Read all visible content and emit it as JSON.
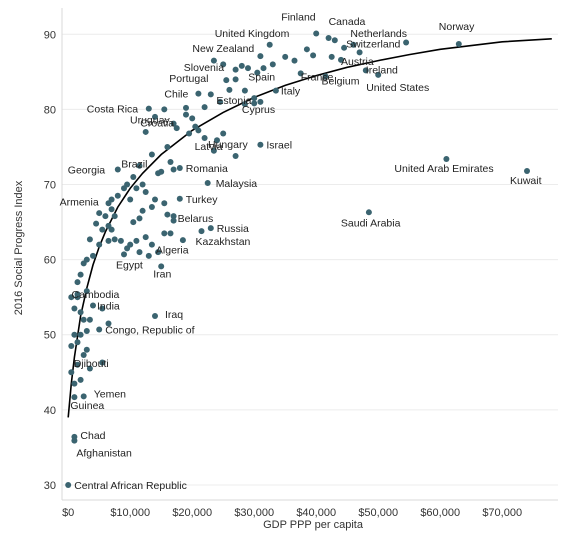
{
  "chart_data": {
    "type": "scatter",
    "xlabel": "GDP PPP per capita",
    "ylabel": "2016 Social Progress Index",
    "xlim": [
      -1000,
      79000
    ],
    "ylim": [
      28,
      93.5
    ],
    "x_ticks": [
      {
        "value": 0,
        "label": "$0"
      },
      {
        "value": 10000,
        "label": "$10,000"
      },
      {
        "value": 20000,
        "label": "$20,000"
      },
      {
        "value": 30000,
        "label": "$30,000"
      },
      {
        "value": 40000,
        "label": "$40,000"
      },
      {
        "value": 50000,
        "label": "$50,000"
      },
      {
        "value": 60000,
        "label": "$60,000"
      },
      {
        "value": 70000,
        "label": "$70,000"
      }
    ],
    "y_ticks": [
      {
        "value": 30,
        "label": "30"
      },
      {
        "value": 40,
        "label": "40"
      },
      {
        "value": 50,
        "label": "50"
      },
      {
        "value": 60,
        "label": "60"
      },
      {
        "value": 70,
        "label": "70"
      },
      {
        "value": 80,
        "label": "80"
      },
      {
        "value": 90,
        "label": "90"
      }
    ],
    "grid": "horizontal",
    "point_color": "#3b6470",
    "trend_color": "#000000",
    "trend_line": [
      [
        0,
        39
      ],
      [
        500,
        43.5
      ],
      [
        1000,
        47
      ],
      [
        2000,
        52.5
      ],
      [
        3000,
        56.2
      ],
      [
        4000,
        59.3
      ],
      [
        5000,
        61.7
      ],
      [
        6000,
        63.7
      ],
      [
        8000,
        67
      ],
      [
        10000,
        69.5
      ],
      [
        12000,
        71.5
      ],
      [
        15000,
        74
      ],
      [
        20000,
        77.2
      ],
      [
        25000,
        79.6
      ],
      [
        30000,
        81.6
      ],
      [
        35000,
        83.2
      ],
      [
        40000,
        84.5
      ],
      [
        45000,
        85.6
      ],
      [
        50000,
        86.5
      ],
      [
        55000,
        87.3
      ],
      [
        60000,
        88
      ],
      [
        65000,
        88.5
      ],
      [
        70000,
        89
      ],
      [
        78000,
        89.4
      ]
    ],
    "labeled_points": [
      {
        "name": "Finland",
        "x": 40000,
        "y": 90.1
      },
      {
        "name": "Canada",
        "x": 42000,
        "y": 89.5
      },
      {
        "name": "Netherlands",
        "x": 46000,
        "y": 88.6
      },
      {
        "name": "Norway",
        "x": 63000,
        "y": 88.7
      },
      {
        "name": "United Kingdom",
        "x": 32500,
        "y": 88.6
      },
      {
        "name": "New Zealand",
        "x": 31000,
        "y": 87.1
      },
      {
        "name": "Switzerland",
        "x": 54500,
        "y": 88.9
      },
      {
        "name": "Slovenia",
        "x": 28000,
        "y": 85.8
      },
      {
        "name": "Austria",
        "x": 44000,
        "y": 86.6
      },
      {
        "name": "Ireland",
        "x": 48000,
        "y": 85.2
      },
      {
        "name": "Spain",
        "x": 30500,
        "y": 84.9
      },
      {
        "name": "Portugal",
        "x": 25500,
        "y": 83.9
      },
      {
        "name": "Belgium",
        "x": 41500,
        "y": 84.4
      },
      {
        "name": "France",
        "x": 37500,
        "y": 84.8
      },
      {
        "name": "United States",
        "x": 50000,
        "y": 84.6
      },
      {
        "name": "Chile",
        "x": 21000,
        "y": 82.1
      },
      {
        "name": "Italy",
        "x": 33500,
        "y": 82.5
      },
      {
        "name": "Estonia",
        "x": 26000,
        "y": 82.6
      },
      {
        "name": "Costa Rica",
        "x": 13000,
        "y": 80.1
      },
      {
        "name": "Cyprus",
        "x": 28500,
        "y": 80.7
      },
      {
        "name": "Uruguay",
        "x": 19000,
        "y": 79.3
      },
      {
        "name": "Croatia",
        "x": 20500,
        "y": 77.7
      },
      {
        "name": "Hungary",
        "x": 24000,
        "y": 75.9
      },
      {
        "name": "Israel",
        "x": 31000,
        "y": 75.3
      },
      {
        "name": "Latvia",
        "x": 22000,
        "y": 76.2
      },
      {
        "name": "Brazil",
        "x": 15000,
        "y": 71.7
      },
      {
        "name": "Romania",
        "x": 18000,
        "y": 72.2
      },
      {
        "name": "United Arab Emirates",
        "x": 61000,
        "y": 73.4
      },
      {
        "name": "Kuwait",
        "x": 74000,
        "y": 71.8
      },
      {
        "name": "Georgia",
        "x": 8000,
        "y": 72.0
      },
      {
        "name": "Malaysia",
        "x": 22500,
        "y": 70.2
      },
      {
        "name": "Turkey",
        "x": 18000,
        "y": 68.1
      },
      {
        "name": "Armenia",
        "x": 7000,
        "y": 66.7
      },
      {
        "name": "Belarus",
        "x": 17000,
        "y": 65.8
      },
      {
        "name": "Saudi Arabia",
        "x": 48500,
        "y": 66.3
      },
      {
        "name": "Russia",
        "x": 23000,
        "y": 64.2
      },
      {
        "name": "Kazakhstan",
        "x": 21500,
        "y": 63.8
      },
      {
        "name": "Algeria",
        "x": 13500,
        "y": 62.0
      },
      {
        "name": "Egypt",
        "x": 9000,
        "y": 60.7
      },
      {
        "name": "Iran",
        "x": 15000,
        "y": 59.1
      },
      {
        "name": "Cambodia",
        "x": 1500,
        "y": 55.4
      },
      {
        "name": "India",
        "x": 4000,
        "y": 53.9
      },
      {
        "name": "Iraq",
        "x": 14000,
        "y": 52.5
      },
      {
        "name": "Congo, Republic of",
        "x": 5000,
        "y": 50.7
      },
      {
        "name": "Djibouti",
        "x": 2500,
        "y": 47.3
      },
      {
        "name": "Yemen",
        "x": 2500,
        "y": 41.8
      },
      {
        "name": "Guinea",
        "x": 1000,
        "y": 41.7
      },
      {
        "name": "Chad",
        "x": 1000,
        "y": 36.4
      },
      {
        "name": "Afghanistan",
        "x": 1000,
        "y": 35.9
      },
      {
        "name": "Central African Republic",
        "x": 0,
        "y": 30.0
      }
    ],
    "points": [
      [
        23500,
        86.5
      ],
      [
        25000,
        86
      ],
      [
        27000,
        85.3
      ],
      [
        29000,
        85.5
      ],
      [
        31500,
        85.5
      ],
      [
        33000,
        86
      ],
      [
        35000,
        87
      ],
      [
        36500,
        86.5
      ],
      [
        38500,
        88
      ],
      [
        39500,
        87.2
      ],
      [
        43000,
        89.2
      ],
      [
        44500,
        88.2
      ],
      [
        47000,
        87.6
      ],
      [
        42500,
        87
      ],
      [
        27000,
        84
      ],
      [
        28500,
        82.5
      ],
      [
        30000,
        81.5
      ],
      [
        23000,
        82
      ],
      [
        24500,
        81
      ],
      [
        22000,
        80.3
      ],
      [
        20000,
        78.8
      ],
      [
        19000,
        80.2
      ],
      [
        17000,
        78.1
      ],
      [
        17500,
        77.5
      ],
      [
        19500,
        76.8
      ],
      [
        21000,
        77.2
      ],
      [
        25000,
        76.8
      ],
      [
        23500,
        74.5
      ],
      [
        27000,
        73.8
      ],
      [
        30000,
        80.8
      ],
      [
        31000,
        81
      ],
      [
        15500,
        80
      ],
      [
        14000,
        79
      ],
      [
        12500,
        77
      ],
      [
        16000,
        75
      ],
      [
        13500,
        74
      ],
      [
        11500,
        72.5
      ],
      [
        10500,
        71
      ],
      [
        12000,
        70
      ],
      [
        16500,
        73
      ],
      [
        17000,
        72
      ],
      [
        14500,
        71.5
      ],
      [
        11000,
        69.5
      ],
      [
        10000,
        68
      ],
      [
        9500,
        70
      ],
      [
        9000,
        69.5
      ],
      [
        12500,
        69
      ],
      [
        14000,
        68
      ],
      [
        15500,
        67.5
      ],
      [
        13500,
        67
      ],
      [
        12000,
        66.5
      ],
      [
        11500,
        65.5
      ],
      [
        10500,
        65
      ],
      [
        16000,
        66
      ],
      [
        17000,
        65.2
      ],
      [
        15500,
        63.5
      ],
      [
        16500,
        63.5
      ],
      [
        18500,
        62.6
      ],
      [
        12500,
        63
      ],
      [
        11000,
        62.5
      ],
      [
        10000,
        62
      ],
      [
        9500,
        61.5
      ],
      [
        11500,
        61
      ],
      [
        14500,
        61
      ],
      [
        13000,
        60.5
      ],
      [
        8000,
        68.5
      ],
      [
        7000,
        68
      ],
      [
        6500,
        67.5
      ],
      [
        7500,
        65.8
      ],
      [
        6000,
        65.8
      ],
      [
        5000,
        66.2
      ],
      [
        6500,
        64.5
      ],
      [
        5500,
        64
      ],
      [
        4500,
        64.8
      ],
      [
        3500,
        62.7
      ],
      [
        5000,
        62
      ],
      [
        6500,
        62.5
      ],
      [
        4000,
        60.5
      ],
      [
        3000,
        60
      ],
      [
        2500,
        59.5
      ],
      [
        2000,
        58
      ],
      [
        1500,
        57
      ],
      [
        7500,
        62.7
      ],
      [
        8500,
        62.5
      ],
      [
        7000,
        64
      ],
      [
        1000,
        53.5
      ],
      [
        2000,
        53
      ],
      [
        2500,
        52
      ],
      [
        3500,
        52
      ],
      [
        5500,
        53.5
      ],
      [
        6500,
        51.5
      ],
      [
        3000,
        50.5
      ],
      [
        1000,
        50
      ],
      [
        2000,
        50
      ],
      [
        1500,
        49
      ],
      [
        500,
        48.5
      ],
      [
        3000,
        48
      ],
      [
        1500,
        46
      ],
      [
        500,
        45
      ],
      [
        3500,
        45.5
      ],
      [
        1000,
        43.5
      ],
      [
        5500,
        46.3
      ],
      [
        2000,
        44
      ],
      [
        500,
        55
      ],
      [
        1500,
        55
      ],
      [
        3000,
        55.8
      ]
    ]
  }
}
